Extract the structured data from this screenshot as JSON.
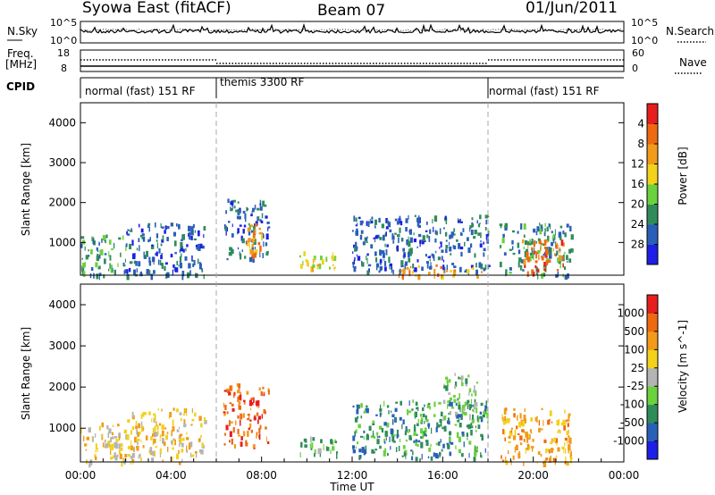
{
  "header": {
    "title": "Syowa East (fitACF)",
    "beam": "Beam 07",
    "date": "01/Jun/2011"
  },
  "noise_panel": {
    "left_label": "N.Sky",
    "right_label": "N.Search",
    "tick_top": "10^5",
    "tick_bottom": "10^0"
  },
  "freq_panel": {
    "left_label_line1": "Freq.",
    "left_label_line2": "[MHz]",
    "left_tick_top": "18",
    "left_tick_bottom": "8",
    "right_label": "Nave",
    "right_tick_top": "60",
    "right_tick_bottom": "0"
  },
  "cpid_panel": {
    "label": "CPID",
    "segments": [
      {
        "label": "normal (fast) 151 RF",
        "start_hour": 0,
        "end_hour": 6
      },
      {
        "label": "themis 3300 RF",
        "start_hour": 6,
        "end_hour": 18
      },
      {
        "label": "normal (fast) 151 RF",
        "start_hour": 18,
        "end_hour": 24
      }
    ]
  },
  "chart_data": [
    {
      "type": "heatmap",
      "quantity": "Power",
      "ylabel": "Slant Range [km]",
      "yticks": [
        1000,
        2000,
        3000,
        4000
      ],
      "ylim": [
        180,
        4500
      ],
      "xlim": [
        0,
        24
      ],
      "colorbar": {
        "label": "Power [dB]",
        "ticks": [
          "4",
          "8",
          "12",
          "16",
          "20",
          "24",
          "28"
        ],
        "colors": [
          "#1e1ee6",
          "#2a5fb8",
          "#2f8c5a",
          "#6bd13c",
          "#f2d21a",
          "#f29a1a",
          "#ee6a12",
          "#e61e1e"
        ]
      },
      "echo_regions": [
        {
          "t0": 0.0,
          "t1": 2.0,
          "r0": 180,
          "r1": 1200,
          "level": 2
        },
        {
          "t0": 2.0,
          "t1": 5.5,
          "r0": 180,
          "r1": 1500,
          "level": 1
        },
        {
          "t0": 6.3,
          "t1": 8.3,
          "r0": 600,
          "r1": 2100,
          "level": 1
        },
        {
          "t0": 7.3,
          "t1": 8.0,
          "r0": 700,
          "r1": 1500,
          "level": 5
        },
        {
          "t0": 9.6,
          "t1": 11.3,
          "r0": 380,
          "r1": 800,
          "level": 4
        },
        {
          "t0": 12.0,
          "t1": 18.0,
          "r0": 300,
          "r1": 1700,
          "level": 1
        },
        {
          "t0": 14.0,
          "t1": 18.0,
          "r0": 180,
          "r1": 450,
          "level": 5
        },
        {
          "t0": 18.5,
          "t1": 21.7,
          "r0": 180,
          "r1": 1500,
          "level": 2
        },
        {
          "t0": 19.5,
          "t1": 21.3,
          "r0": 250,
          "r1": 1100,
          "level": 6
        }
      ]
    },
    {
      "type": "heatmap",
      "quantity": "Velocity",
      "ylabel": "Slant Range [km]",
      "yticks": [
        1000,
        2000,
        3000,
        4000
      ],
      "ylim": [
        180,
        4500
      ],
      "xlim": [
        0,
        24
      ],
      "colorbar": {
        "label": "Velocity [m s^-1]",
        "ticks": [
          "1000",
          "500",
          "100",
          "25",
          "-25",
          "-100",
          "-500",
          "-1000"
        ],
        "colors": [
          "#1e1ee6",
          "#2a5fb8",
          "#2f8c5a",
          "#6bd13c",
          "#b4b4b4",
          "#f2d21a",
          "#f29a1a",
          "#ee6a12",
          "#e61e1e"
        ]
      },
      "echo_regions": [
        {
          "t0": 0.0,
          "t1": 2.0,
          "r0": 180,
          "r1": 1200,
          "level": 5
        },
        {
          "t0": 2.0,
          "t1": 5.5,
          "r0": 180,
          "r1": 1500,
          "level": 5
        },
        {
          "t0": 6.3,
          "t1": 8.3,
          "r0": 600,
          "r1": 2100,
          "level": 7
        },
        {
          "t0": 9.6,
          "t1": 11.3,
          "r0": 380,
          "r1": 800,
          "level": 3
        },
        {
          "t0": 12.0,
          "t1": 18.0,
          "r0": 300,
          "r1": 1700,
          "level": 2
        },
        {
          "t0": 16.0,
          "t1": 17.5,
          "r0": 1200,
          "r1": 2400,
          "level": 3
        },
        {
          "t0": 18.5,
          "t1": 21.7,
          "r0": 180,
          "r1": 1500,
          "level": 6
        }
      ]
    }
  ],
  "x_axis": {
    "label": "Time UT",
    "ticks": [
      "00:00",
      "04:00",
      "08:00",
      "12:00",
      "16:00",
      "20:00",
      "00:00"
    ],
    "tick_hours": [
      0,
      4,
      8,
      12,
      16,
      20,
      24
    ],
    "mode_change_hours": [
      6,
      18
    ]
  }
}
